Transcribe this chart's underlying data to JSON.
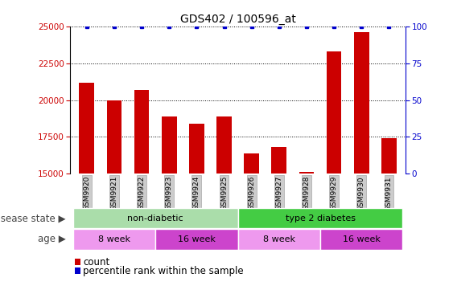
{
  "title": "GDS402 / 100596_at",
  "samples": [
    "GSM9920",
    "GSM9921",
    "GSM9922",
    "GSM9923",
    "GSM9924",
    "GSM9925",
    "GSM9926",
    "GSM9927",
    "GSM9928",
    "GSM9929",
    "GSM9930",
    "GSM9931"
  ],
  "counts": [
    21200,
    20000,
    20700,
    18900,
    18400,
    18900,
    16400,
    16800,
    15100,
    23300,
    24600,
    17400
  ],
  "percentile_ranks": [
    100,
    100,
    100,
    100,
    100,
    100,
    100,
    100,
    100,
    100,
    100,
    100
  ],
  "bar_color": "#cc0000",
  "percentile_color": "#0000cc",
  "ylim_left": [
    15000,
    25000
  ],
  "yticks_left": [
    15000,
    17500,
    20000,
    22500,
    25000
  ],
  "ylim_right": [
    0,
    100
  ],
  "yticks_right": [
    0,
    25,
    50,
    75,
    100
  ],
  "grid_color": "#000000",
  "background_color": "#ffffff",
  "disease_state_groups": [
    {
      "label": "non-diabetic",
      "start": 0,
      "end": 6,
      "color": "#aaddaa"
    },
    {
      "label": "type 2 diabetes",
      "start": 6,
      "end": 12,
      "color": "#44cc44"
    }
  ],
  "age_groups": [
    {
      "label": "8 week",
      "start": 0,
      "end": 3,
      "color": "#ee99ee"
    },
    {
      "label": "16 week",
      "start": 3,
      "end": 6,
      "color": "#cc44cc"
    },
    {
      "label": "8 week",
      "start": 6,
      "end": 9,
      "color": "#ee99ee"
    },
    {
      "label": "16 week",
      "start": 9,
      "end": 12,
      "color": "#cc44cc"
    }
  ],
  "xlabel_disease": "disease state",
  "xlabel_age": "age",
  "legend_count_label": "count",
  "legend_percentile_label": "percentile rank within the sample",
  "tick_bg_color": "#cccccc",
  "title_fontsize": 10,
  "label_fontsize": 8.5,
  "tick_fontsize": 7.5,
  "bar_width": 0.55
}
